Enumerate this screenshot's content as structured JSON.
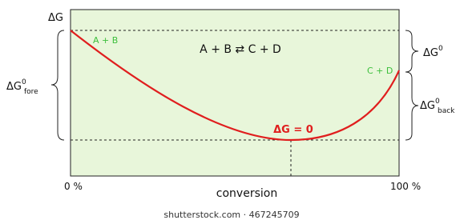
{
  "axis": {
    "y_label": "ΔG",
    "x_start": "0 %",
    "x_end": "100 %",
    "x_label": "conversion"
  },
  "equation": "A + B ⇄ C + D",
  "curve_labels": {
    "start": "A + B",
    "end": "C + D",
    "minimum": "ΔG = 0"
  },
  "brackets": {
    "total": {
      "base": "ΔG",
      "sup": "0"
    },
    "forward": {
      "base": "ΔG",
      "sup": "0",
      "sub": "fore"
    },
    "backward": {
      "base": "ΔG",
      "sup": "0",
      "sub": "back"
    }
  },
  "footer": "shutterstock.com · 467245709"
}
